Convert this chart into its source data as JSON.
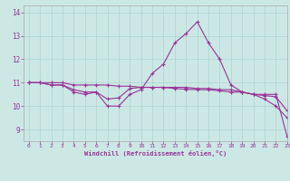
{
  "xlabel": "Windchill (Refroidissement éolien,°C)",
  "xlim": [
    -0.5,
    23
  ],
  "ylim": [
    8.5,
    14.3
  ],
  "yticks": [
    9,
    10,
    11,
    12,
    13,
    14
  ],
  "xticks": [
    0,
    1,
    2,
    3,
    4,
    5,
    6,
    7,
    8,
    9,
    10,
    11,
    12,
    13,
    14,
    15,
    16,
    17,
    18,
    19,
    20,
    21,
    22,
    23
  ],
  "background_color": "#cce8e4",
  "grid_color": "#aad4d0",
  "line_color": "#993399",
  "line1_x": [
    0,
    1,
    2,
    3,
    4,
    5,
    6,
    7,
    8,
    9,
    10,
    11,
    12,
    13,
    14,
    15,
    16,
    17,
    18,
    19,
    20,
    21,
    22,
    23
  ],
  "line1_y": [
    11.0,
    11.0,
    10.9,
    10.9,
    10.6,
    10.5,
    10.6,
    10.0,
    10.0,
    10.5,
    10.7,
    11.4,
    11.8,
    12.7,
    13.1,
    13.6,
    12.7,
    12.0,
    10.9,
    10.6,
    10.5,
    10.3,
    10.0,
    9.5
  ],
  "line2_x": [
    0,
    1,
    2,
    3,
    4,
    5,
    6,
    7,
    8,
    9,
    10,
    11,
    12,
    13,
    14,
    15,
    16,
    17,
    18,
    19,
    20,
    21,
    22,
    23
  ],
  "line2_y": [
    11.0,
    11.0,
    10.9,
    10.9,
    10.7,
    10.6,
    10.6,
    10.3,
    10.35,
    10.75,
    10.8,
    10.8,
    10.8,
    10.8,
    10.8,
    10.75,
    10.75,
    10.7,
    10.7,
    10.6,
    10.5,
    10.5,
    10.5,
    8.7
  ],
  "line3_x": [
    0,
    1,
    2,
    3,
    4,
    5,
    6,
    7,
    8,
    9,
    10,
    11,
    12,
    13,
    14,
    15,
    16,
    17,
    18,
    19,
    20,
    21,
    22,
    23
  ],
  "line3_y": [
    11.0,
    11.0,
    11.0,
    11.0,
    10.9,
    10.9,
    10.9,
    10.9,
    10.85,
    10.85,
    10.8,
    10.8,
    10.8,
    10.75,
    10.72,
    10.7,
    10.7,
    10.65,
    10.6,
    10.6,
    10.5,
    10.45,
    10.4,
    9.8
  ],
  "marker": "+"
}
